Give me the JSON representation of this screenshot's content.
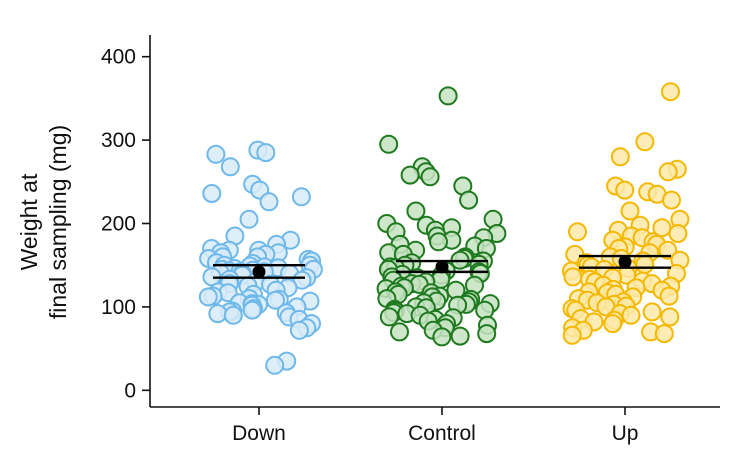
{
  "chart_data": {
    "type": "scatter",
    "ylabel_lines": [
      "Weight at",
      "final sampling (mg)"
    ],
    "categories": [
      "Down",
      "Control",
      "Up"
    ],
    "ylim": [
      -20,
      420
    ],
    "yticks": [
      0,
      100,
      200,
      300,
      400
    ],
    "grid": false,
    "series": [
      {
        "category": "Down",
        "color": "#6fb8ea",
        "fill": "#d8ebf8",
        "mean": 142,
        "ci": [
          135,
          150
        ],
        "values": [
          288,
          285,
          283,
          268,
          247,
          240,
          236,
          232,
          226,
          205,
          185,
          180,
          175,
          170,
          168,
          168,
          165,
          165,
          163,
          160,
          160,
          158,
          157,
          155,
          153,
          152,
          150,
          150,
          149,
          148,
          147,
          146,
          145,
          145,
          144,
          143,
          142,
          142,
          141,
          140,
          140,
          138,
          136,
          135,
          133,
          132,
          130,
          128,
          127,
          125,
          123,
          120,
          118,
          117,
          115,
          113,
          112,
          110,
          109,
          108,
          107,
          105,
          104,
          103,
          102,
          100,
          98,
          96,
          95,
          94,
          93,
          92,
          90,
          88,
          85,
          80,
          75,
          72,
          35,
          30
        ]
      },
      {
        "category": "Control",
        "color": "#1f7a1f",
        "fill": "#c5e3c2",
        "mean": 148,
        "ci": [
          142,
          155
        ],
        "values": [
          353,
          295,
          268,
          262,
          258,
          256,
          245,
          228,
          215,
          205,
          200,
          198,
          195,
          192,
          190,
          188,
          185,
          183,
          180,
          178,
          175,
          173,
          170,
          168,
          165,
          163,
          160,
          158,
          156,
          155,
          153,
          151,
          150,
          148,
          147,
          145,
          143,
          142,
          140,
          139,
          138,
          136,
          135,
          133,
          132,
          130,
          128,
          127,
          126,
          125,
          123,
          122,
          120,
          118,
          117,
          115,
          113,
          112,
          110,
          109,
          107,
          106,
          105,
          104,
          103,
          102,
          100,
          99,
          97,
          96,
          95,
          93,
          92,
          90,
          88,
          87,
          85,
          83,
          80,
          78,
          75,
          72,
          70,
          68,
          65,
          64
        ]
      },
      {
        "category": "Up",
        "color": "#f5b800",
        "fill": "#fde9a8",
        "mean": 154,
        "ci": [
          147,
          161
        ],
        "values": [
          358,
          298,
          280,
          265,
          262,
          245,
          240,
          238,
          235,
          228,
          215,
          205,
          198,
          195,
          192,
          190,
          188,
          185,
          183,
          180,
          178,
          175,
          172,
          170,
          168,
          165,
          163,
          160,
          158,
          156,
          155,
          153,
          151,
          150,
          148,
          146,
          145,
          143,
          140,
          138,
          136,
          135,
          133,
          131,
          130,
          128,
          126,
          125,
          123,
          121,
          120,
          118,
          117,
          115,
          113,
          112,
          110,
          108,
          106,
          105,
          103,
          101,
          100,
          98,
          96,
          94,
          92,
          90,
          88,
          86,
          84,
          82,
          80,
          75,
          72,
          70,
          68,
          66
        ]
      }
    ]
  }
}
